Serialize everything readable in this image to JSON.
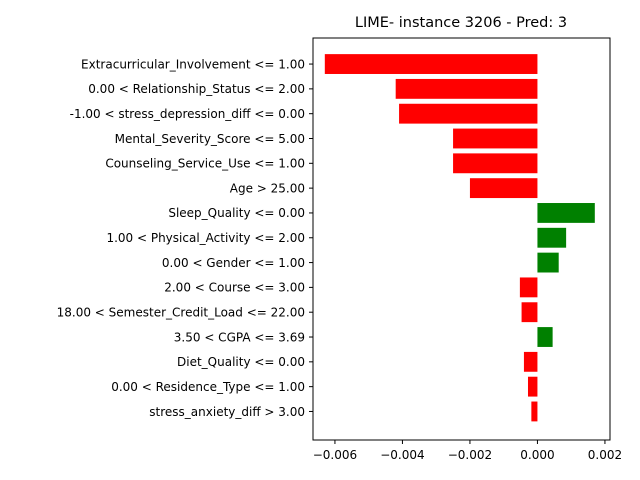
{
  "chart_data": {
    "type": "bar",
    "orientation": "horizontal",
    "title": "LIME- instance 3206 - Pred: 3",
    "xlabel": "",
    "ylabel": "",
    "xlim": [
      -0.00665,
      0.00215
    ],
    "xticks": [
      -0.006,
      -0.004,
      -0.002,
      0.0,
      0.002
    ],
    "xtick_labels": [
      "−0.006",
      "−0.004",
      "−0.002",
      "0.000",
      "0.002"
    ],
    "grid": false,
    "legend": "none",
    "positive_color": "#008000",
    "negative_color": "#ff0000",
    "categories": [
      "Extracurricular_Involvement <= 1.00",
      "0.00 < Relationship_Status <= 2.00",
      "-1.00 < stress_depression_diff <= 0.00",
      "Mental_Severity_Score <= 5.00",
      "Counseling_Service_Use <= 1.00",
      "Age > 25.00",
      "Sleep_Quality <= 0.00",
      "1.00 < Physical_Activity <= 2.00",
      "0.00 < Gender <= 1.00",
      "2.00 < Course <= 3.00",
      "18.00 < Semester_Credit_Load <= 22.00",
      "3.50 < CGPA <= 3.69",
      "Diet_Quality <= 0.00",
      "0.00 < Residence_Type <= 1.00",
      "stress_anxiety_diff > 3.00"
    ],
    "values": [
      -0.0063,
      -0.0042,
      -0.0041,
      -0.0025,
      -0.0025,
      -0.002,
      0.0017,
      0.00085,
      0.00063,
      -0.00052,
      -0.00047,
      0.00045,
      -0.0004,
      -0.00028,
      -0.00018
    ]
  }
}
